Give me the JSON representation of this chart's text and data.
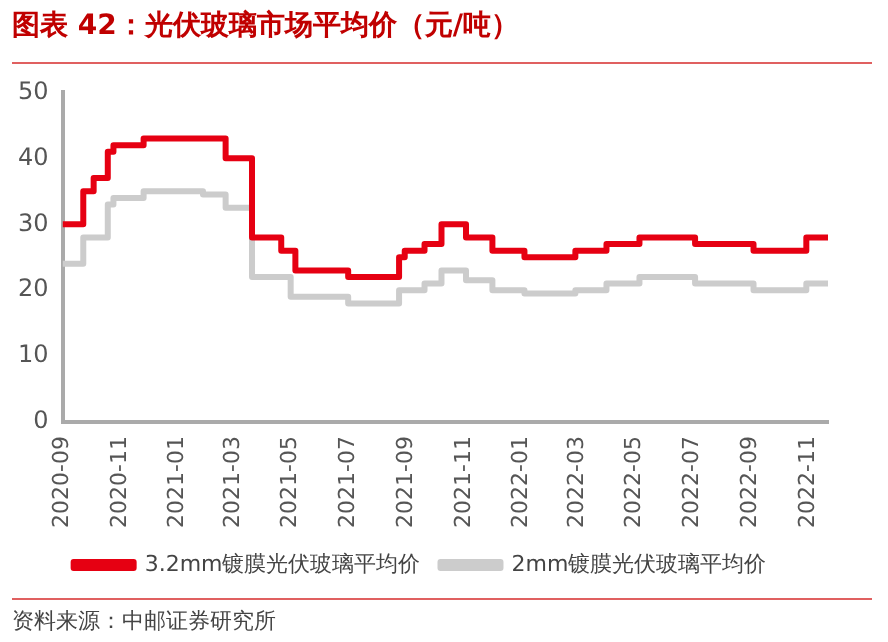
{
  "chart_data": {
    "type": "step",
    "title": "图表 42：光伏玻璃市场平均价（元/吨）",
    "xlim": [
      "2020-09-01",
      "2022-11-22"
    ],
    "xticks": [
      "2020-09",
      "2020-11",
      "2021-01",
      "2021-03",
      "2021-05",
      "2021-07",
      "2021-09",
      "2021-11",
      "2022-01",
      "2022-03",
      "2022-05",
      "2022-07",
      "2022-09",
      "2022-11"
    ],
    "ylim": [
      0,
      50
    ],
    "yticks": [
      0,
      10,
      20,
      30,
      40,
      50
    ],
    "grid": false,
    "legend": "bottom",
    "marker": "none",
    "line_style": "solid",
    "series": [
      {
        "name": "3.2mm镀膜光伏玻璃平均价",
        "color": "#e60012",
        "x": [
          "2020-09-01",
          "2020-09-23",
          "2020-10-04",
          "2020-10-19",
          "2020-10-25",
          "2020-11-26",
          "2021-02-21",
          "2021-03-21",
          "2021-04-21",
          "2021-05-06",
          "2021-07-01",
          "2021-08-24",
          "2021-08-30",
          "2021-09-20",
          "2021-10-08",
          "2021-11-03",
          "2021-12-01",
          "2022-01-04",
          "2022-02-27",
          "2022-04-01",
          "2022-05-06",
          "2022-07-04",
          "2022-09-04",
          "2022-10-30",
          "2022-11-22"
        ],
        "values": [
          30,
          35,
          37,
          41,
          42,
          43,
          40,
          28,
          26,
          23,
          22,
          25,
          26,
          27,
          30,
          28,
          26,
          25,
          26,
          27,
          28,
          27,
          26,
          28,
          28
        ]
      },
      {
        "name": "2mm镀膜光伏玻璃平均价",
        "color": "#cccccc",
        "x": [
          "2020-09-01",
          "2020-09-23",
          "2020-10-19",
          "2020-10-25",
          "2020-11-26",
          "2021-01-28",
          "2021-02-21",
          "2021-03-21",
          "2021-05-01",
          "2021-07-01",
          "2021-08-24",
          "2021-09-20",
          "2021-10-08",
          "2021-11-03",
          "2021-12-01",
          "2022-01-04",
          "2022-02-27",
          "2022-04-01",
          "2022-05-06",
          "2022-07-04",
          "2022-09-04",
          "2022-10-30",
          "2022-11-22"
        ],
        "values": [
          24,
          28,
          33,
          34,
          35,
          34.5,
          32.5,
          22,
          19,
          18,
          20,
          21,
          23,
          21.5,
          20,
          19.5,
          20,
          21,
          22,
          21,
          20,
          21,
          21
        ]
      }
    ],
    "annotations": [
      "资料来源：中邮证券研究所"
    ]
  }
}
